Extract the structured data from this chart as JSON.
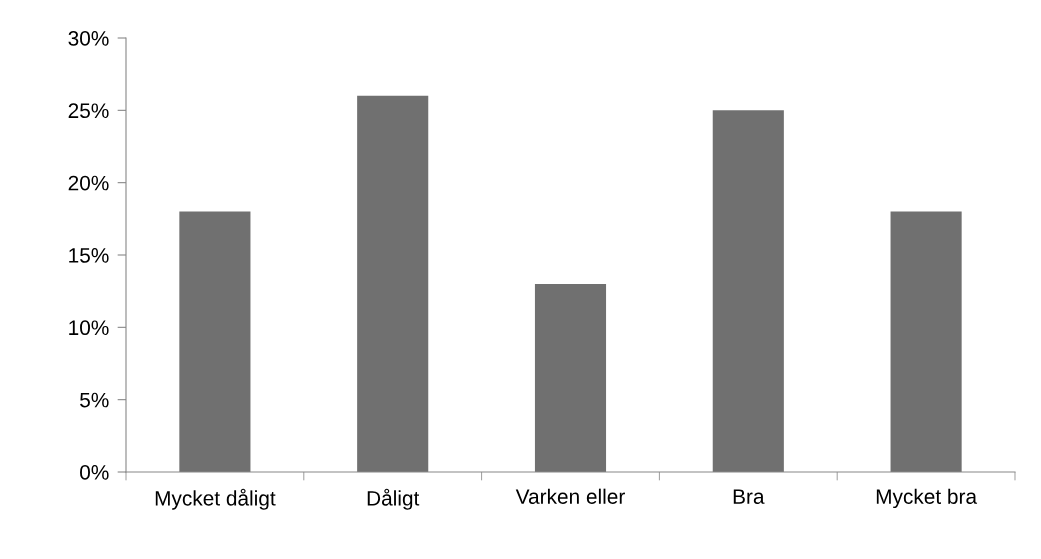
{
  "chart_data": {
    "type": "bar",
    "categories": [
      "Mycket dåligt",
      "Dåligt",
      "Varken eller",
      "Bra",
      "Mycket bra"
    ],
    "values": [
      18,
      26,
      13,
      25,
      18
    ],
    "color": "#707070",
    "ylim": [
      0,
      30
    ],
    "yticks": [
      {
        "value": 0,
        "label": "0%"
      },
      {
        "value": 5,
        "label": "5%"
      },
      {
        "value": 10,
        "label": "10%"
      },
      {
        "value": 15,
        "label": "15%"
      },
      {
        "value": 20,
        "label": "20%"
      },
      {
        "value": 25,
        "label": "25%"
      },
      {
        "value": 30,
        "label": "30%"
      }
    ],
    "grid": false,
    "legend": false
  }
}
